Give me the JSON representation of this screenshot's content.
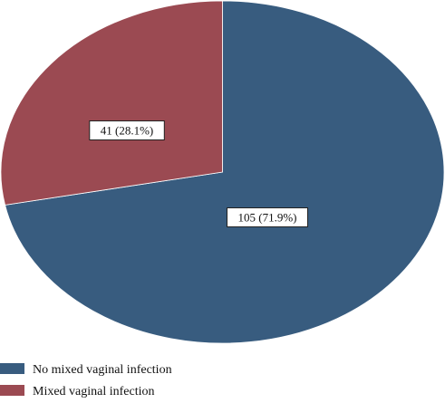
{
  "chart_data": {
    "type": "pie",
    "title": "",
    "slices": [
      {
        "label": "No mixed vaginal infection",
        "value": 105,
        "percent": 71.9,
        "data_label": "105 (71.9%)",
        "color": "#385c7f"
      },
      {
        "label": "Mixed vaginal infection",
        "value": 41,
        "percent": 28.1,
        "data_label": "41 (28.1%)",
        "color": "#9b4a52"
      }
    ],
    "legend": {
      "placement": "bottom-left",
      "entries": [
        "No mixed vaginal infection",
        "Mixed vaginal infection"
      ]
    }
  }
}
